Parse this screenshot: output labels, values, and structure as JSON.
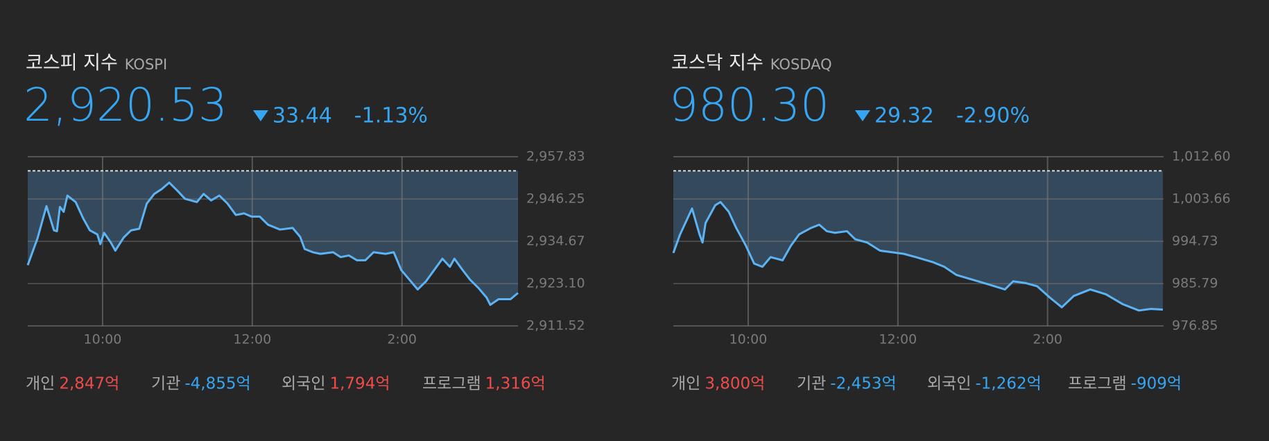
{
  "panels": [
    {
      "title": "코스피 지수",
      "subtitle": "KOSPI",
      "value": "2,920.53",
      "direction": "down",
      "change": "33.44",
      "change_percent": "-1.13%",
      "chart": {
        "type": "line",
        "color": "#5db4f5",
        "fill": "#35495d",
        "grid": true,
        "baseline": 2953.97,
        "x": [
          9.0,
          9.13,
          9.25,
          9.35,
          9.39,
          9.43,
          9.48,
          9.53,
          9.64,
          9.74,
          9.83,
          9.93,
          9.97,
          10.02,
          10.11,
          10.17,
          10.28,
          10.38,
          10.49,
          10.59,
          10.69,
          10.79,
          10.89,
          11.0,
          11.1,
          11.26,
          11.35,
          11.45,
          11.56,
          11.67,
          11.78,
          11.89,
          11.99,
          12.1,
          12.21,
          12.37,
          12.54,
          12.64,
          12.7,
          12.81,
          12.91,
          13.08,
          13.18,
          13.29,
          13.4,
          13.51,
          13.62,
          13.78,
          13.89,
          13.99,
          14.1,
          14.21,
          14.32,
          14.43,
          14.54,
          14.64,
          14.7,
          14.81,
          14.91,
          15.02,
          15.13,
          15.18,
          15.29,
          15.45,
          15.55
        ],
        "values": [
          2928.14,
          2935.45,
          2944.31,
          2937.67,
          2937.44,
          2944.09,
          2942.76,
          2947.19,
          2945.42,
          2940.99,
          2937.67,
          2936.56,
          2933.9,
          2937.0,
          2934.34,
          2932.13,
          2935.67,
          2937.67,
          2938.11,
          2944.98,
          2947.64,
          2948.97,
          2950.74,
          2948.52,
          2946.31,
          2945.42,
          2947.64,
          2945.86,
          2947.19,
          2944.98,
          2941.88,
          2942.32,
          2941.43,
          2941.43,
          2939.22,
          2937.89,
          2938.33,
          2935.89,
          2932.57,
          2931.68,
          2931.24,
          2931.68,
          2930.35,
          2930.8,
          2929.47,
          2929.47,
          2931.68,
          2931.24,
          2931.68,
          2926.81,
          2924.15,
          2921.49,
          2923.71,
          2926.81,
          2929.91,
          2927.7,
          2929.91,
          2926.81,
          2924.15,
          2921.93,
          2919.28,
          2917.28,
          2918.83,
          2918.83,
          2920.53
        ],
        "xlim": [
          9,
          15.55
        ],
        "xticks": [
          {
            "value": 10,
            "label": "10:00"
          },
          {
            "value": 12,
            "label": "12:00"
          },
          {
            "value": 14,
            "label": "2:00"
          }
        ],
        "ylim": [
          2911.52,
          2957.83
        ],
        "yticks": [
          {
            "value": 2957.83,
            "label": "2,957.83"
          },
          {
            "value": 2946.25,
            "label": "2,946.25"
          },
          {
            "value": 2934.67,
            "label": "2,934.67"
          },
          {
            "value": 2923.1,
            "label": "2,923.10"
          },
          {
            "value": 2911.52,
            "label": "2,911.52"
          }
        ]
      },
      "investors": [
        {
          "label": "개인",
          "value": "2,847억",
          "color": "#f04b4b"
        },
        {
          "label": "기관",
          "value": "-4,855억",
          "color": "#36a6f2"
        },
        {
          "label": "외국인",
          "value": "1,794억",
          "color": "#f04b4b"
        },
        {
          "label": "프로그램",
          "value": "1,316억",
          "color": "#f04b4b"
        }
      ]
    },
    {
      "title": "코스닥 지수",
      "subtitle": "KOSDAQ",
      "value": "980.30",
      "direction": "down",
      "change": "29.32",
      "change_percent": "-2.90%",
      "chart": {
        "type": "line",
        "color": "#5db4f5",
        "fill": "#35495d",
        "grid": true,
        "baseline": 1009.62,
        "x": [
          9.0,
          9.09,
          9.19,
          9.25,
          9.35,
          9.39,
          9.43,
          9.56,
          9.63,
          9.74,
          9.84,
          9.97,
          10.08,
          10.19,
          10.3,
          10.46,
          10.57,
          10.68,
          10.84,
          10.95,
          11.05,
          11.16,
          11.32,
          11.43,
          11.59,
          11.76,
          11.92,
          12.08,
          12.24,
          12.46,
          12.62,
          12.78,
          13.0,
          13.22,
          13.43,
          13.54,
          13.7,
          13.86,
          14.03,
          14.19,
          14.35,
          14.57,
          14.78,
          15.0,
          15.22,
          15.38,
          15.54
        ],
        "values": [
          992.25,
          996.18,
          999.6,
          1001.65,
          996.18,
          994.47,
          998.57,
          1002.34,
          1003.02,
          1000.97,
          997.55,
          993.78,
          990.02,
          989.34,
          991.39,
          990.71,
          993.78,
          996.18,
          997.55,
          998.23,
          996.86,
          996.52,
          996.86,
          995.15,
          994.47,
          992.76,
          992.42,
          992.07,
          991.39,
          990.36,
          989.34,
          987.63,
          986.6,
          985.57,
          984.55,
          986.26,
          985.92,
          985.23,
          982.84,
          980.78,
          983.18,
          984.55,
          983.52,
          981.47,
          980.1,
          980.44,
          980.3
        ],
        "xlim": [
          9,
          15.55
        ],
        "xticks": [
          {
            "value": 10,
            "label": "10:00"
          },
          {
            "value": 12,
            "label": "12:00"
          },
          {
            "value": 14,
            "label": "2:00"
          }
        ],
        "ylim": [
          976.85,
          1012.6
        ],
        "yticks": [
          {
            "value": 1012.6,
            "label": "1,012.60"
          },
          {
            "value": 1003.66,
            "label": "1,003.66"
          },
          994.73,
          985.79,
          976.85
        ]
      },
      "investors": [
        {
          "label": "개인",
          "value": "3,800억",
          "color": "#f04b4b"
        },
        {
          "label": "기관",
          "value": "-2,453억",
          "color": "#36a6f2"
        },
        {
          "label": "외국인",
          "value": "-1,262억",
          "color": "#36a6f2"
        },
        {
          "label": "프로그램",
          "value": "-909억",
          "color": "#36a6f2"
        }
      ]
    }
  ]
}
